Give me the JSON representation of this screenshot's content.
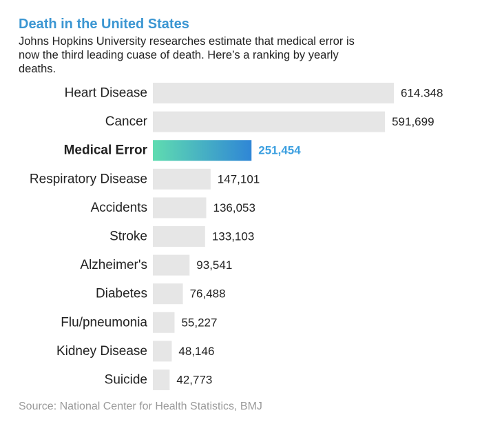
{
  "chart_data": {
    "type": "bar",
    "orientation": "horizontal",
    "title": "Death in the United States",
    "subtitle": "Johns Hopkins University researches estimate that medical error is now the third leading cuase of death. Here’s a ranking by yearly deaths.",
    "source": "Source: National Center for Health Statistics, BMJ",
    "categories": [
      "Heart Disease",
      "Cancer",
      "Medical Error",
      "Respiratory Disease",
      "Accidents",
      "Stroke",
      "Alzheimer's",
      "Diabetes",
      "Flu/pneumonia",
      "Kidney Disease",
      "Suicide"
    ],
    "values": [
      614348,
      591699,
      251454,
      147101,
      136053,
      133103,
      93541,
      76488,
      55227,
      48146,
      42773
    ],
    "value_labels": [
      "614.348",
      "591,699",
      "251,454",
      "147,101",
      "136,053",
      "133,103",
      "93,541",
      "76,488",
      "55,227",
      "48,146",
      "42,773"
    ],
    "highlight": "Medical Error",
    "grid": false,
    "legend": "none",
    "colors": {
      "bar": "#e6e6e6",
      "highlight_gradient": [
        "#5fdcb0",
        "#2f86d6"
      ],
      "highlight_text": "#3b9fe0",
      "title": "#3b96d2",
      "text": "#222222",
      "source": "#9a9a9a"
    }
  }
}
